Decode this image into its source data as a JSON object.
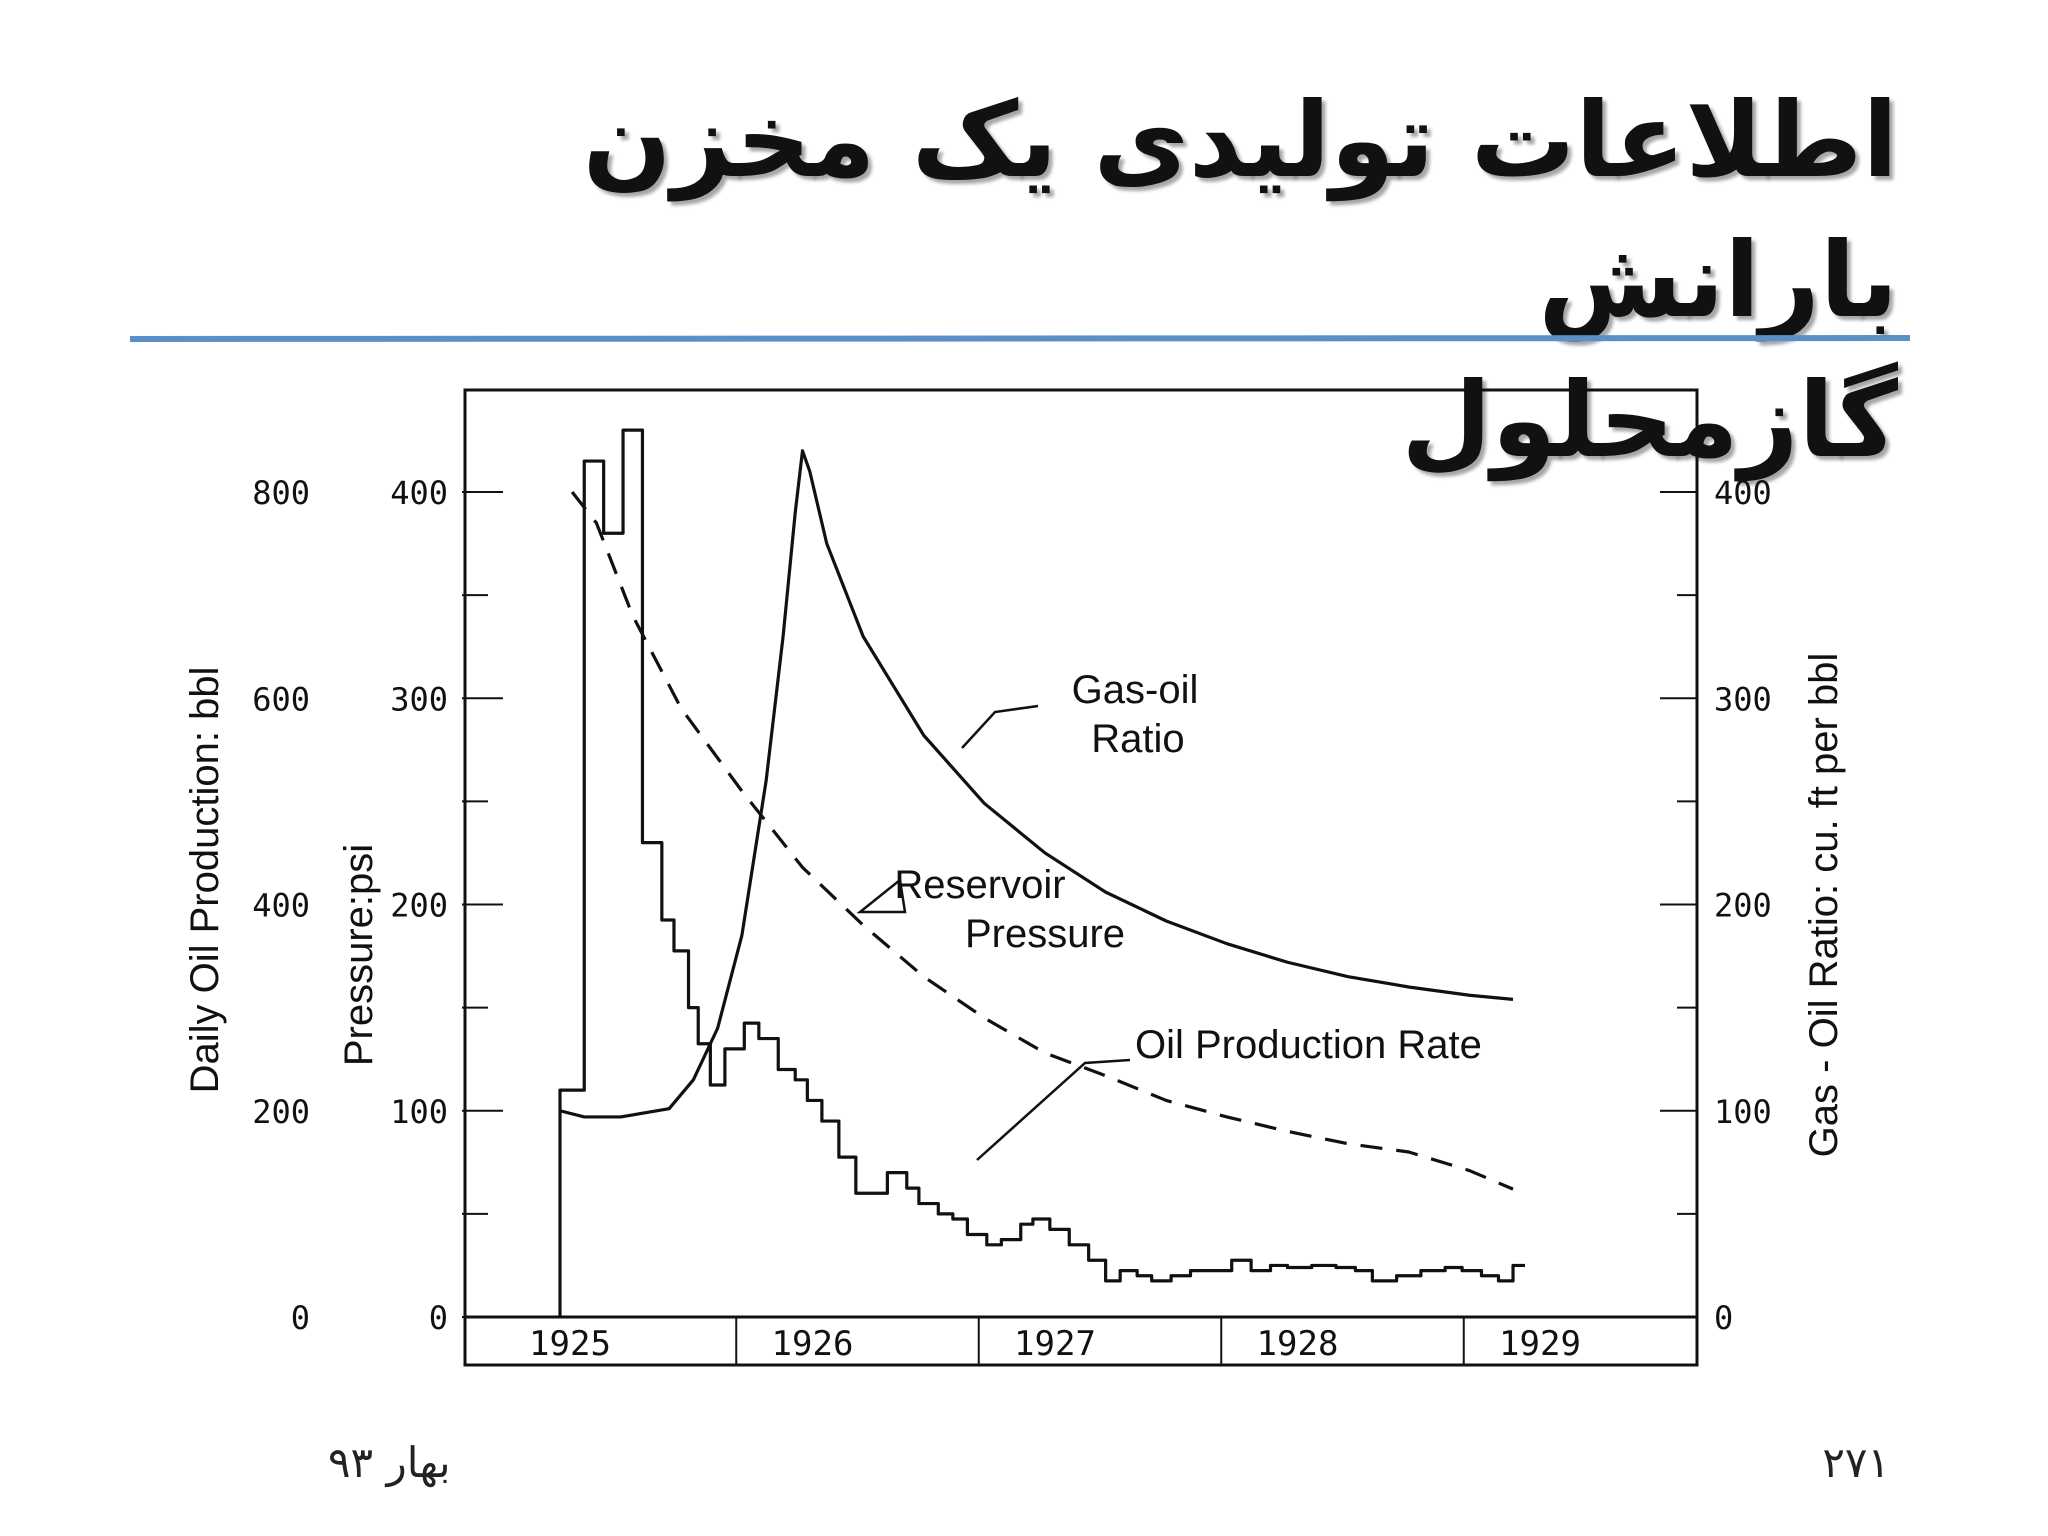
{
  "slide": {
    "title_line1": "اطلاعات تولیدی یک مخزن بارانش",
    "title_line2": "گازمحلول",
    "footer_left": "بهار ۹۳",
    "footer_right": "۲۷۱",
    "divider_color": "#5b8fc7"
  },
  "chart_data": {
    "type": "line",
    "x_categories": [
      "1925",
      "1926",
      "1927",
      "1928",
      "1929"
    ],
    "x_range": [
      1925,
      1929
    ],
    "axes": {
      "left_outer": {
        "label": "Daily Oil Production: bbl",
        "ticks": [
          "0",
          "200",
          "400",
          "600",
          "800"
        ],
        "range": [
          0,
          800
        ]
      },
      "left_inner": {
        "label": "Pressure:psi",
        "ticks": [
          "0",
          "100",
          "200",
          "300",
          "400"
        ],
        "range": [
          0,
          400
        ]
      },
      "right": {
        "label": "Gas - Oil Ratio: cu. ft per bbl",
        "ticks": [
          "0",
          "100",
          "200",
          "300",
          "400"
        ],
        "range": [
          0,
          400
        ]
      }
    },
    "annotations": {
      "gor_line1": "Gas-oil",
      "gor_line2": "Ratio",
      "pressure_line1": "Reservoir",
      "pressure_line2": "Pressure",
      "rate": "Oil Production Rate"
    },
    "series": [
      {
        "name": "Gas-oil Ratio",
        "axis": "right",
        "style": "solid",
        "x": [
          1925.0,
          1925.1,
          1925.25,
          1925.45,
          1925.55,
          1925.65,
          1925.75,
          1925.85,
          1925.92,
          1925.97,
          1926.0,
          1926.03,
          1926.1,
          1926.25,
          1926.5,
          1926.75,
          1927.0,
          1927.25,
          1927.5,
          1927.75,
          1928.0,
          1928.25,
          1928.5,
          1928.75,
          1928.93
        ],
        "y": [
          100,
          97,
          97,
          101,
          115,
          140,
          185,
          260,
          330,
          390,
          420,
          410,
          375,
          330,
          282,
          249,
          225,
          206,
          192,
          181,
          172,
          165,
          160,
          156,
          154
        ]
      },
      {
        "name": "Reservoir Pressure",
        "axis": "left_inner",
        "style": "dashed",
        "x": [
          1925.05,
          1925.15,
          1925.3,
          1925.5,
          1925.75,
          1926.0,
          1926.25,
          1926.5,
          1926.75,
          1927.0,
          1927.25,
          1927.5,
          1927.75,
          1928.0,
          1928.25,
          1928.5,
          1928.75,
          1928.93
        ],
        "y": [
          400,
          385,
          340,
          295,
          255,
          218,
          190,
          165,
          145,
          128,
          117,
          105,
          97,
          90,
          84,
          80,
          71,
          62
        ]
      },
      {
        "name": "Oil Production Rate",
        "axis": "left_outer",
        "style": "step",
        "x": [
          1925.0,
          1925.1,
          1925.18,
          1925.26,
          1925.34,
          1925.42,
          1925.47,
          1925.53,
          1925.57,
          1925.62,
          1925.68,
          1925.76,
          1925.82,
          1925.9,
          1925.97,
          1926.02,
          1926.08,
          1926.15,
          1926.22,
          1926.26,
          1926.35,
          1926.43,
          1926.48,
          1926.56,
          1926.62,
          1926.68,
          1926.76,
          1926.82,
          1926.9,
          1926.95,
          1927.02,
          1927.1,
          1927.18,
          1927.25,
          1927.31,
          1927.38,
          1927.44,
          1927.52,
          1927.6,
          1927.68,
          1927.77,
          1927.85,
          1927.93,
          1928.0,
          1928.1,
          1928.2,
          1928.28,
          1928.35,
          1928.45,
          1928.55,
          1928.65,
          1928.72,
          1928.8,
          1928.87,
          1928.93
        ],
        "y": [
          220,
          830,
          760,
          860,
          460,
          385,
          355,
          300,
          265,
          225,
          260,
          285,
          270,
          240,
          230,
          210,
          190,
          155,
          120,
          120,
          140,
          125,
          110,
          100,
          95,
          80,
          70,
          75,
          90,
          95,
          85,
          70,
          55,
          35,
          45,
          40,
          35,
          40,
          45,
          45,
          55,
          45,
          50,
          48,
          50,
          48,
          45,
          35,
          40,
          45,
          48,
          45,
          40,
          35,
          50
        ]
      }
    ]
  }
}
